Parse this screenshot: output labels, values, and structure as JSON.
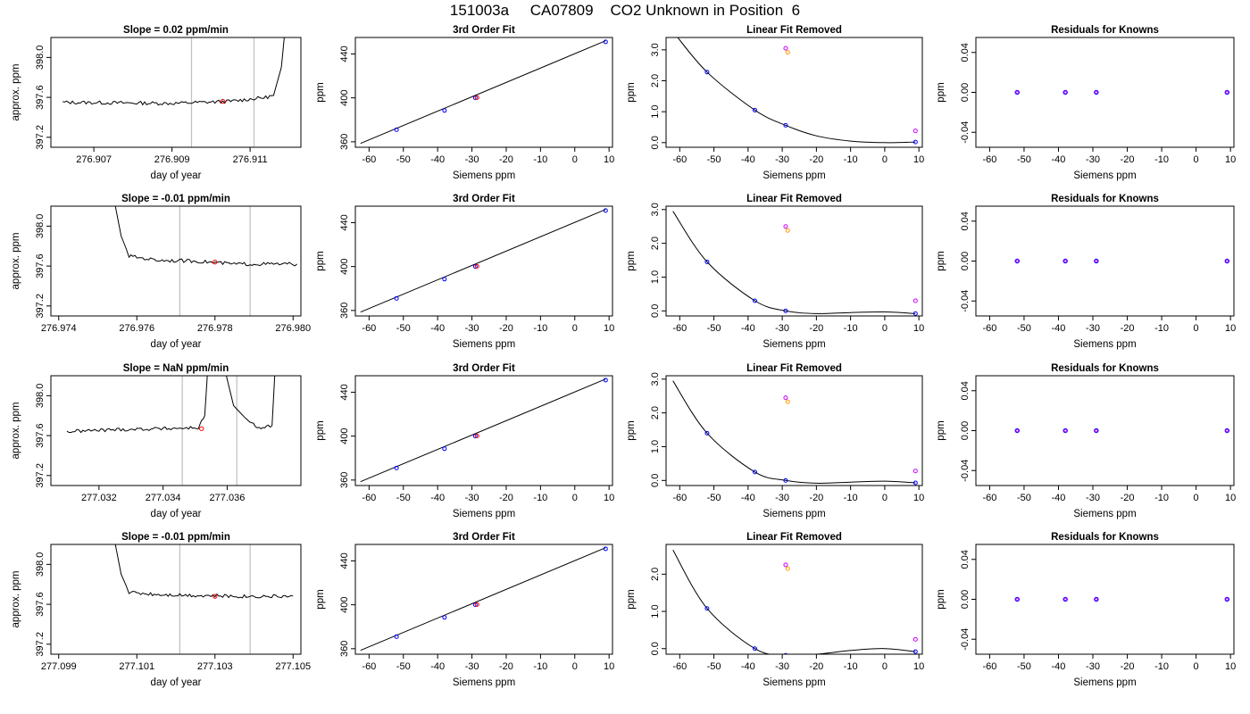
{
  "figure_title": "151003a     CA07809    CO2 Unknown in Position  6",
  "colors": {
    "trace": "#000000",
    "vline": "#bfbfbf",
    "known": "#0000ff",
    "sample_mark": "#ff0000",
    "unknown_a": "#cc00ff",
    "unknown_b": "#ff9900"
  },
  "chart_data": [
    {
      "type": "line",
      "panel": "time",
      "row": 1,
      "title": "Slope =  0.02  ppm/min",
      "xlabel": "day of year",
      "ylabel": "approx. ppm",
      "xlim": [
        276.9059,
        276.9123
      ],
      "ylim": [
        397.1,
        398.2
      ],
      "xticks": [
        "276.907",
        "276.909",
        "276.911"
      ],
      "yticks": [
        "397.2",
        "397.6",
        "398.0"
      ],
      "vlines": [
        276.9095,
        276.9111
      ],
      "sample_point": [
        276.9103,
        397.56
      ],
      "x": [
        276.9062,
        276.909,
        276.9105,
        276.9114,
        276.9116,
        276.9118,
        276.9119
      ],
      "y": [
        397.55,
        397.54,
        397.56,
        397.6,
        397.62,
        397.9,
        398.3
      ]
    },
    {
      "type": "scatter",
      "panel": "calibration",
      "row": 1,
      "title": "3rd Order Fit",
      "xlabel": "Siemens ppm",
      "ylabel": "ppm",
      "xlim": [
        -64,
        11
      ],
      "ylim": [
        355,
        455
      ],
      "xticks": [
        "-60",
        "-50",
        "-40",
        "-30",
        "-20",
        "-10",
        "0",
        "10"
      ],
      "yticks": [
        "360",
        "400",
        "440"
      ],
      "fit_line": [
        [
          -62.5,
          358.5
        ],
        [
          9,
          452
        ]
      ],
      "knowns": [
        [
          -52,
          371
        ],
        [
          -38,
          388.5
        ],
        [
          -29,
          400
        ],
        [
          9,
          451
        ]
      ],
      "unknowns": [
        [
          -28.5,
          400.2
        ]
      ]
    },
    {
      "type": "scatter",
      "panel": "linear_removed",
      "row": 1,
      "title": "Linear Fit Removed",
      "xlabel": "Siemens ppm",
      "ylabel": "ppm",
      "xlim": [
        -64,
        11
      ],
      "ylim": [
        -0.15,
        3.4
      ],
      "xticks": [
        "-60",
        "-50",
        "-40",
        "-30",
        "-20",
        "-10",
        "0",
        "10"
      ],
      "yticks": [
        "0.0",
        "1.0",
        "2.0",
        "3.0"
      ],
      "curve": [
        [
          -62,
          3.6
        ],
        [
          -52,
          2.28
        ],
        [
          -38,
          1.05
        ],
        [
          -29,
          0.56
        ],
        [
          -20,
          0.22
        ],
        [
          -10,
          0.05
        ],
        [
          0,
          0.0
        ],
        [
          9,
          0.02
        ]
      ],
      "knowns": [
        [
          -52,
          2.28
        ],
        [
          -38,
          1.05
        ],
        [
          -29,
          0.56
        ],
        [
          9,
          0.02
        ]
      ],
      "unknown_a": [
        [
          -29,
          3.05
        ],
        [
          9,
          0.38
        ]
      ],
      "unknown_b": [
        [
          -28.4,
          2.92
        ]
      ]
    },
    {
      "type": "scatter",
      "panel": "residuals",
      "row": 1,
      "title": "Residuals for Knowns",
      "xlabel": "Siemens ppm",
      "ylabel": "ppm",
      "xlim": [
        -64,
        11
      ],
      "ylim": [
        -0.055,
        0.055
      ],
      "xticks": [
        "-60",
        "-50",
        "-40",
        "-30",
        "-20",
        "-10",
        "0",
        "10"
      ],
      "yticks": [
        "-0.04",
        "0.00",
        "0.04"
      ],
      "points": [
        [
          -52,
          0
        ],
        [
          -38,
          0
        ],
        [
          -29,
          0
        ],
        [
          9,
          0
        ]
      ]
    },
    {
      "type": "line",
      "panel": "time",
      "row": 2,
      "title": "Slope =  -0.01  ppm/min",
      "xlabel": "day of year",
      "ylabel": "approx. ppm",
      "xlim": [
        276.9738,
        276.9802
      ],
      "ylim": [
        397.1,
        398.2
      ],
      "xticks": [
        "276.974",
        "276.976",
        "276.978",
        "276.980"
      ],
      "yticks": [
        "397.2",
        "397.6",
        "398.0"
      ],
      "vlines": [
        276.9771,
        276.9789
      ],
      "sample_point": [
        276.978,
        397.64
      ],
      "x": [
        276.9754,
        276.9756,
        276.9758,
        276.9765,
        276.9775,
        276.9785,
        276.9801
      ],
      "y": [
        398.3,
        397.9,
        397.7,
        397.66,
        397.65,
        397.62,
        397.62
      ]
    },
    {
      "type": "scatter",
      "panel": "calibration",
      "row": 2,
      "title": "3rd Order Fit",
      "xlabel": "Siemens ppm",
      "ylabel": "ppm",
      "xlim": [
        -64,
        11
      ],
      "ylim": [
        355,
        455
      ],
      "xticks": [
        "-60",
        "-50",
        "-40",
        "-30",
        "-20",
        "-10",
        "0",
        "10"
      ],
      "yticks": [
        "360",
        "400",
        "440"
      ],
      "fit_line": [
        [
          -62.5,
          358.5
        ],
        [
          9,
          452
        ]
      ],
      "knowns": [
        [
          -52,
          371
        ],
        [
          -38,
          388.5
        ],
        [
          -29,
          400
        ],
        [
          9,
          451
        ]
      ],
      "unknowns": [
        [
          -28.5,
          400.2
        ]
      ]
    },
    {
      "type": "scatter",
      "panel": "linear_removed",
      "row": 2,
      "title": "Linear Fit Removed",
      "xlabel": "Siemens ppm",
      "ylabel": "ppm",
      "xlim": [
        -64,
        11
      ],
      "ylim": [
        -0.15,
        3.1
      ],
      "xticks": [
        "-60",
        "-50",
        "-40",
        "-30",
        "-20",
        "-10",
        "0",
        "10"
      ],
      "yticks": [
        "0.0",
        "1.0",
        "2.0",
        "3.0"
      ],
      "curve": [
        [
          -62,
          2.95
        ],
        [
          -52,
          1.45
        ],
        [
          -38,
          0.3
        ],
        [
          -29,
          0.0
        ],
        [
          -20,
          -0.08
        ],
        [
          -10,
          -0.05
        ],
        [
          0,
          -0.03
        ],
        [
          9,
          -0.08
        ]
      ],
      "knowns": [
        [
          -52,
          1.45
        ],
        [
          -38,
          0.3
        ],
        [
          -29,
          0.0
        ],
        [
          9,
          -0.08
        ]
      ],
      "unknown_a": [
        [
          -29,
          2.5
        ],
        [
          9,
          0.3
        ]
      ],
      "unknown_b": [
        [
          -28.4,
          2.38
        ]
      ]
    },
    {
      "type": "scatter",
      "panel": "residuals",
      "row": 2,
      "title": "Residuals for Knowns",
      "xlabel": "Siemens ppm",
      "ylabel": "ppm",
      "xlim": [
        -64,
        11
      ],
      "ylim": [
        -0.055,
        0.055
      ],
      "xticks": [
        "-60",
        "-50",
        "-40",
        "-30",
        "-20",
        "-10",
        "0",
        "10"
      ],
      "yticks": [
        "-0.04",
        "0.00",
        "0.04"
      ],
      "points": [
        [
          -52,
          0
        ],
        [
          -38,
          0
        ],
        [
          -29,
          0
        ],
        [
          9,
          0
        ]
      ]
    },
    {
      "type": "line",
      "panel": "time",
      "row": 3,
      "title": "Slope =  NaN  ppm/min",
      "xlabel": "day of year",
      "ylabel": "approx. ppm",
      "xlim": [
        277.0305,
        277.0383
      ],
      "ylim": [
        397.1,
        398.2
      ],
      "xticks": [
        "277.032",
        "277.034",
        "277.036"
      ],
      "yticks": [
        "397.2",
        "397.6",
        "398.0"
      ],
      "vlines": [
        277.0346,
        277.0363
      ],
      "sample_point": [
        277.0352,
        397.67
      ],
      "x": [
        277.031,
        277.0325,
        277.034,
        277.0351,
        277.0353,
        277.0354,
        277.0357,
        277.0359,
        277.0362,
        277.0367,
        277.037,
        277.0374,
        277.0375
      ],
      "y": [
        397.64,
        397.66,
        397.67,
        397.68,
        397.8,
        398.3,
        398.3,
        398.3,
        397.9,
        397.73,
        397.68,
        397.7,
        398.3
      ]
    },
    {
      "type": "scatter",
      "panel": "calibration",
      "row": 3,
      "title": "3rd Order Fit",
      "xlabel": "Siemens ppm",
      "ylabel": "ppm",
      "xlim": [
        -64,
        11
      ],
      "ylim": [
        355,
        455
      ],
      "xticks": [
        "-60",
        "-50",
        "-40",
        "-30",
        "-20",
        "-10",
        "0",
        "10"
      ],
      "yticks": [
        "360",
        "400",
        "440"
      ],
      "fit_line": [
        [
          -62.5,
          358.5
        ],
        [
          9,
          452
        ]
      ],
      "knowns": [
        [
          -52,
          371
        ],
        [
          -38,
          388.5
        ],
        [
          -29,
          400
        ],
        [
          9,
          451
        ]
      ],
      "unknowns": [
        [
          -28.5,
          400.2
        ]
      ]
    },
    {
      "type": "scatter",
      "panel": "linear_removed",
      "row": 3,
      "title": "Linear Fit Removed",
      "xlabel": "Siemens ppm",
      "ylabel": "ppm",
      "xlim": [
        -64,
        11
      ],
      "ylim": [
        -0.15,
        3.1
      ],
      "xticks": [
        "-60",
        "-50",
        "-40",
        "-30",
        "-20",
        "-10",
        "0",
        "10"
      ],
      "yticks": [
        "0.0",
        "1.0",
        "2.0",
        "3.0"
      ],
      "curve": [
        [
          -62,
          2.95
        ],
        [
          -52,
          1.4
        ],
        [
          -38,
          0.25
        ],
        [
          -29,
          0.0
        ],
        [
          -20,
          -0.08
        ],
        [
          -10,
          -0.05
        ],
        [
          0,
          -0.02
        ],
        [
          9,
          -0.07
        ]
      ],
      "knowns": [
        [
          -52,
          1.4
        ],
        [
          -38,
          0.25
        ],
        [
          -29,
          0.0
        ],
        [
          9,
          -0.07
        ]
      ],
      "unknown_a": [
        [
          -29,
          2.45
        ],
        [
          9,
          0.28
        ]
      ],
      "unknown_b": [
        [
          -28.4,
          2.33
        ]
      ]
    },
    {
      "type": "scatter",
      "panel": "residuals",
      "row": 3,
      "title": "Residuals for Knowns",
      "xlabel": "Siemens ppm",
      "ylabel": "ppm",
      "xlim": [
        -64,
        11
      ],
      "ylim": [
        -0.055,
        0.055
      ],
      "xticks": [
        "-60",
        "-50",
        "-40",
        "-30",
        "-20",
        "-10",
        "0",
        "10"
      ],
      "yticks": [
        "-0.04",
        "0.00",
        "0.04"
      ],
      "points": [
        [
          -52,
          0
        ],
        [
          -38,
          0
        ],
        [
          -29,
          0
        ],
        [
          9,
          0
        ]
      ]
    },
    {
      "type": "line",
      "panel": "time",
      "row": 4,
      "title": "Slope =  -0.01  ppm/min",
      "xlabel": "day of year",
      "ylabel": "approx. ppm",
      "xlim": [
        277.0988,
        277.1052
      ],
      "ylim": [
        397.1,
        398.2
      ],
      "xticks": [
        "277.099",
        "277.101",
        "277.103",
        "277.105"
      ],
      "yticks": [
        "397.2",
        "397.6",
        "398.0"
      ],
      "vlines": [
        277.1021,
        277.1039
      ],
      "sample_point": [
        277.103,
        397.68
      ],
      "x": [
        277.1004,
        277.1006,
        277.1008,
        277.1015,
        277.1025,
        277.1035,
        277.105
      ],
      "y": [
        398.3,
        397.9,
        397.72,
        397.7,
        397.69,
        397.68,
        397.68
      ]
    },
    {
      "type": "scatter",
      "panel": "calibration",
      "row": 4,
      "title": "3rd Order Fit",
      "xlabel": "Siemens ppm",
      "ylabel": "ppm",
      "xlim": [
        -64,
        11
      ],
      "ylim": [
        355,
        455
      ],
      "xticks": [
        "-60",
        "-50",
        "-40",
        "-30",
        "-20",
        "-10",
        "0",
        "10"
      ],
      "yticks": [
        "360",
        "400",
        "440"
      ],
      "fit_line": [
        [
          -62.5,
          358.5
        ],
        [
          9,
          452
        ]
      ],
      "knowns": [
        [
          -52,
          371
        ],
        [
          -38,
          388.5
        ],
        [
          -29,
          400
        ],
        [
          9,
          451
        ]
      ],
      "unknowns": [
        [
          -28.5,
          400.2
        ]
      ]
    },
    {
      "type": "scatter",
      "panel": "linear_removed",
      "row": 4,
      "title": "Linear Fit Removed",
      "xlabel": "Siemens ppm",
      "ylabel": "ppm",
      "xlim": [
        -64,
        11
      ],
      "ylim": [
        -0.15,
        2.8
      ],
      "xticks": [
        "-60",
        "-50",
        "-40",
        "-30",
        "-20",
        "-10",
        "0",
        "10"
      ],
      "yticks": [
        "0.0",
        "1.0",
        "2.0"
      ],
      "curve": [
        [
          -62,
          2.65
        ],
        [
          -52,
          1.08
        ],
        [
          -38,
          0.0
        ],
        [
          -29,
          -0.18
        ],
        [
          -20,
          -0.15
        ],
        [
          -10,
          -0.05
        ],
        [
          0,
          0.0
        ],
        [
          9,
          -0.08
        ]
      ],
      "knowns": [
        [
          -52,
          1.08
        ],
        [
          -38,
          0.0
        ],
        [
          -29,
          -0.18
        ],
        [
          9,
          -0.08
        ]
      ],
      "unknown_a": [
        [
          -29,
          2.25
        ],
        [
          9,
          0.25
        ]
      ],
      "unknown_b": [
        [
          -28.4,
          2.15
        ]
      ]
    },
    {
      "type": "scatter",
      "panel": "residuals",
      "row": 4,
      "title": "Residuals for Knowns",
      "xlabel": "Siemens ppm",
      "ylabel": "ppm",
      "xlim": [
        -64,
        11
      ],
      "ylim": [
        -0.055,
        0.055
      ],
      "xticks": [
        "-60",
        "-50",
        "-40",
        "-30",
        "-20",
        "-10",
        "0",
        "10"
      ],
      "yticks": [
        "-0.04",
        "0.00",
        "0.04"
      ],
      "points": [
        [
          -52,
          0
        ],
        [
          -38,
          0
        ],
        [
          -29,
          0
        ],
        [
          9,
          0
        ]
      ]
    }
  ]
}
